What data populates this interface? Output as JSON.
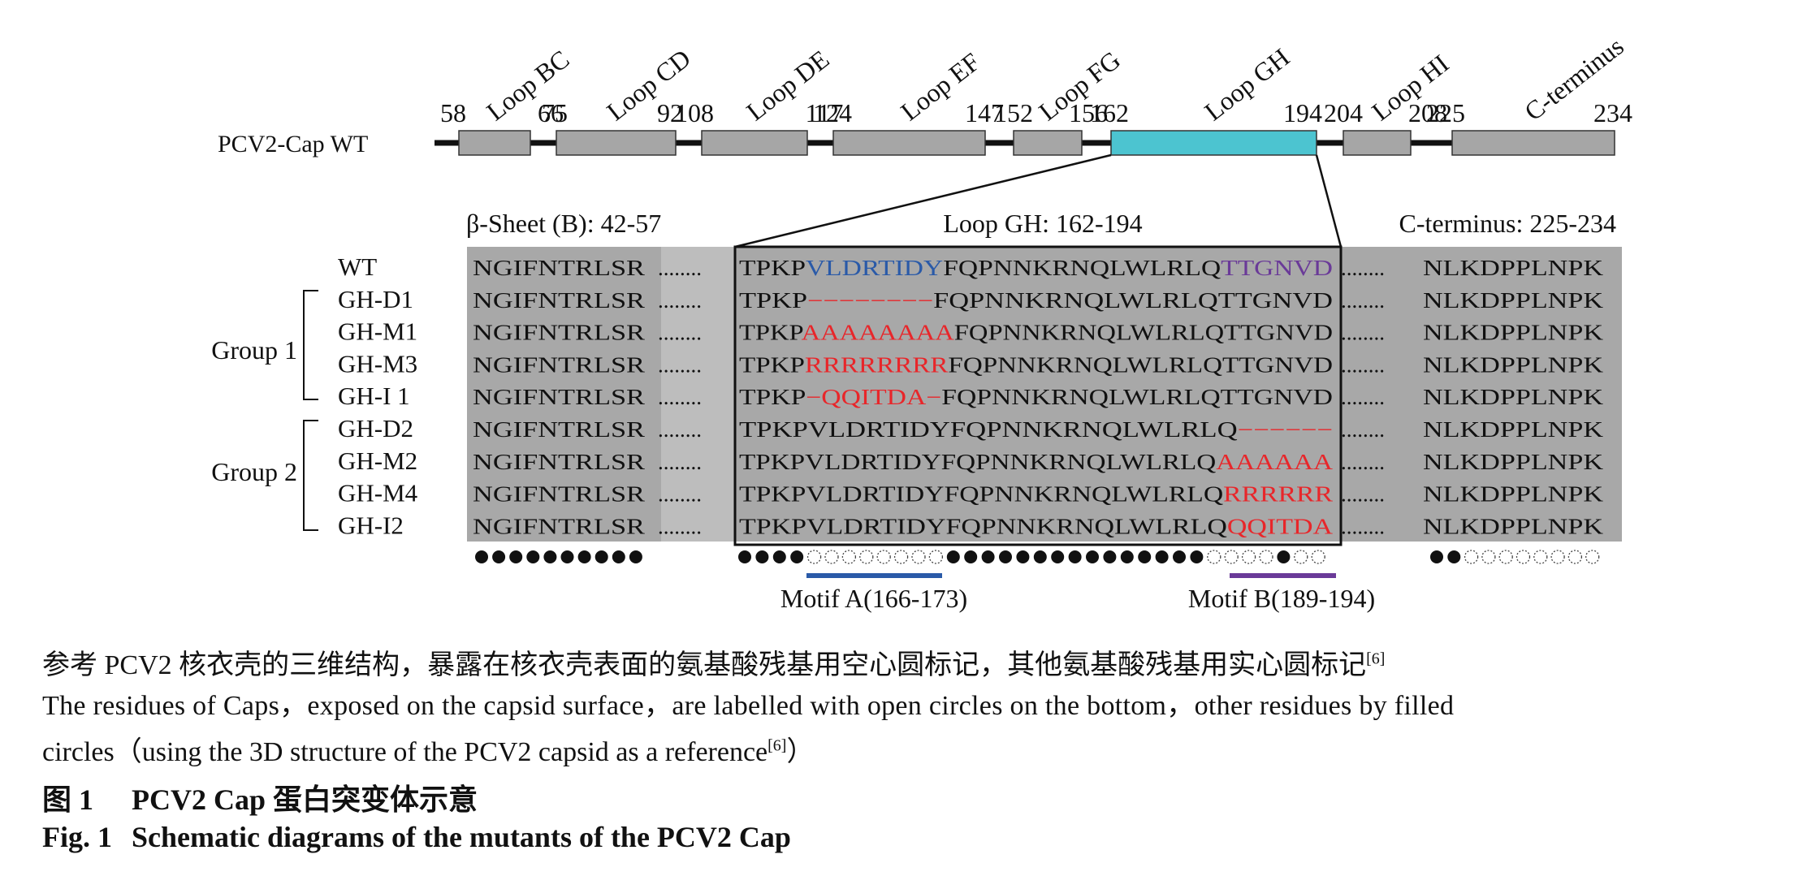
{
  "protein_label": "PCV2-Cap WT",
  "loops": [
    {
      "name": "Loop BC",
      "start": "58",
      "end": "66"
    },
    {
      "name": "Loop CD",
      "start": "75",
      "end": "92"
    },
    {
      "name": "Loop DE",
      "start": "108",
      "end": "117"
    },
    {
      "name": "Loop EF",
      "start": "124",
      "end": "147"
    },
    {
      "name": "Loop FG",
      "start": "152",
      "end": "156"
    },
    {
      "name": "Loop GH",
      "start": "162",
      "end": "194"
    },
    {
      "name": "Loop HI",
      "start": "204",
      "end": "208"
    },
    {
      "name": "C-terminus",
      "start": "225",
      "end": "234"
    }
  ],
  "region_headers": {
    "beta": "β-Sheet (B): 42-57",
    "gh": "Loop GH: 162-194",
    "cterm": "C-terminus: 225-234"
  },
  "groups": [
    "Group 1",
    "Group 2"
  ],
  "rows": [
    {
      "name": "WT",
      "left": "NGIFNTRLSR",
      "gh": [
        [
          "TPKP",
          "k"
        ],
        [
          "VLDRTIDY",
          "b"
        ],
        [
          "FQPNNKRNQLWLRLQ",
          "k"
        ],
        [
          "TTGNVD",
          "p"
        ]
      ],
      "right": "NLKDPPLNPK"
    },
    {
      "name": "GH-D1",
      "left": "NGIFNTRLSR",
      "gh": [
        [
          "TPKP",
          "k"
        ],
        [
          "−−−−−−−−",
          "r"
        ],
        [
          "FQPNNKRNQLWLRLQTTGNVD",
          "k"
        ]
      ],
      "right": "NLKDPPLNPK"
    },
    {
      "name": "GH-M1",
      "left": "NGIFNTRLSR",
      "gh": [
        [
          "TPKP",
          "k"
        ],
        [
          "AAAAAAAA",
          "r"
        ],
        [
          "FQPNNKRNQLWLRLQTTGNVD",
          "k"
        ]
      ],
      "right": "NLKDPPLNPK"
    },
    {
      "name": "GH-M3",
      "left": "NGIFNTRLSR",
      "gh": [
        [
          "TPKP",
          "k"
        ],
        [
          "RRRRRRRR",
          "r"
        ],
        [
          "FQPNNKRNQLWLRLQTTGNVD",
          "k"
        ]
      ],
      "right": "NLKDPPLNPK"
    },
    {
      "name": "GH-I 1",
      "left": "NGIFNTRLSR",
      "gh": [
        [
          "TPKP",
          "k"
        ],
        [
          "−QQITDA−",
          "r"
        ],
        [
          "FQPNNKRNQLWLRLQTTGNVD",
          "k"
        ]
      ],
      "right": "NLKDPPLNPK"
    },
    {
      "name": "GH-D2",
      "left": "NGIFNTRLSR",
      "gh": [
        [
          "TPKPVLDRTIDYFQPNNKRNQLWLRLQ",
          "k"
        ],
        [
          "−−−−−−",
          "r"
        ]
      ],
      "right": "NLKDPPLNPK"
    },
    {
      "name": "GH-M2",
      "left": "NGIFNTRLSR",
      "gh": [
        [
          "TPKPVLDRTIDYFQPNNKRNQLWLRLQ",
          "k"
        ],
        [
          "AAAAAA",
          "r"
        ]
      ],
      "right": "NLKDPPLNPK"
    },
    {
      "name": "GH-M4",
      "left": "NGIFNTRLSR",
      "gh": [
        [
          "TPKPVLDRTIDYFQPNNKRNQLWLRLQ",
          "k"
        ],
        [
          "RRRRRR",
          "r"
        ]
      ],
      "right": "NLKDPPLNPK"
    },
    {
      "name": "GH-I2",
      "left": "NGIFNTRLSR",
      "gh": [
        [
          "TPKPVLDRTIDYFQPNNKRNQLWLRLQ",
          "k"
        ],
        [
          "QQITDA",
          "r"
        ]
      ],
      "right": "NLKDPPLNPK"
    }
  ],
  "dots_left": "FFFFFFFFFF",
  "dots_gh": "FFFFOOOOOOOOFFFFFFFFFFFFFFFOOOOFOO",
  "dots_right": "FFOOOOOOOO",
  "motifs": [
    {
      "label": "Motif A(166-173)",
      "color": "#2a5aa8"
    },
    {
      "label": "Motif B(189-194)",
      "color": "#6a3a98"
    }
  ],
  "colors": {
    "gh_bar": "#4cc4d0",
    "loop_box": "#a6a6a6",
    "shade": "#a8a8a8",
    "blue": "#2a5aa8",
    "purple": "#6a3a98",
    "red": "#e8262a"
  },
  "caption_cn": "参考 PCV2 核衣壳的三维结构，暴露在核衣壳表面的氨基酸残基用空心圆标记，其他氨基酸残基用实心圆标记",
  "caption_en_line1": "The residues of Caps，exposed on the capsid surface，are labelled with open circles on the bottom，other residues by filled",
  "caption_en_line2": "circles（using the 3D structure of the PCV2 capsid as a reference",
  "caption_en_tail": "）",
  "ref": "[6]",
  "fig_cn_num": "图 1",
  "fig_cn_title": "PCV2 Cap 蛋白突变体示意",
  "fig_en_num": "Fig. 1",
  "fig_en_title": "Schematic diagrams of the mutants of the PCV2 Cap"
}
